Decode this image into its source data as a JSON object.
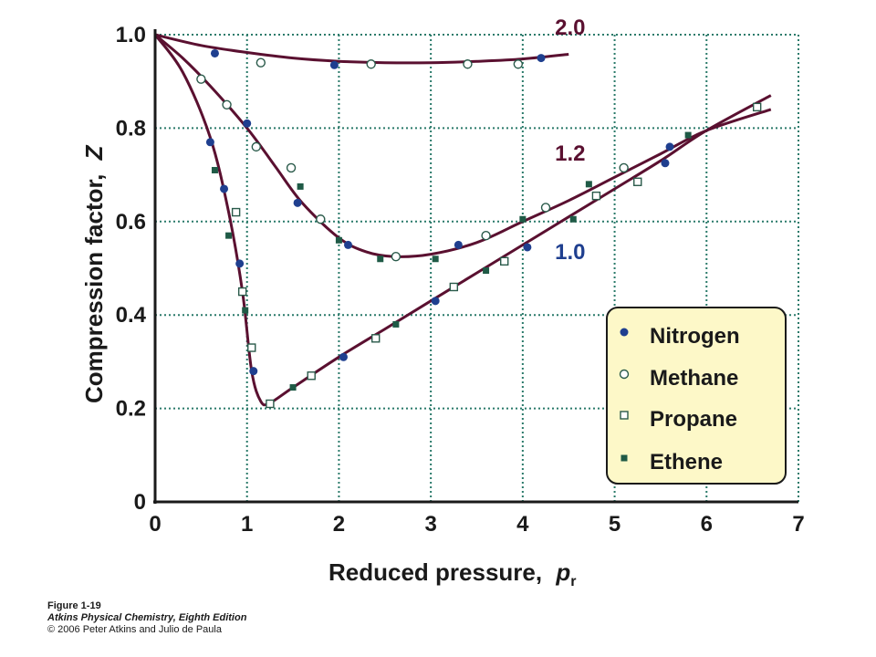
{
  "chart_data": {
    "type": "scatter",
    "xlabel": "Reduced pressure,",
    "xlabel_symbol": "p",
    "xlabel_subscript": "r",
    "ylabel": "Compression factor,",
    "ylabel_symbol": "Z",
    "xlim": [
      0,
      7
    ],
    "ylim": [
      0,
      1.0
    ],
    "x_ticks": [
      "0",
      "1",
      "2",
      "3",
      "4",
      "5",
      "6",
      "7"
    ],
    "y_ticks": [
      "0",
      "0.2",
      "0.4",
      "0.6",
      "0.8",
      "1.0"
    ],
    "grid": true,
    "legend_position": "bottom-right",
    "colors": {
      "curve": "#5a1030",
      "nitrogen": "#1f3f8f",
      "methane": "#2a5a4a",
      "propane": "#2a5a4a",
      "ethene": "#1f5a46",
      "grid": "#2a7a6a",
      "legend_bg": "#fdf8c8",
      "label_blue": "#1f3f8f"
    },
    "curves": [
      {
        "label": "2.0",
        "label_color": "#5a1030",
        "points": [
          [
            0,
            1.0
          ],
          [
            0.5,
            0.977
          ],
          [
            1,
            0.962
          ],
          [
            1.5,
            0.95
          ],
          [
            2,
            0.943
          ],
          [
            2.5,
            0.94
          ],
          [
            3,
            0.94
          ],
          [
            3.5,
            0.943
          ],
          [
            4,
            0.948
          ],
          [
            4.5,
            0.958
          ]
        ]
      },
      {
        "label": "1.2",
        "label_color": "#5a1030",
        "points": [
          [
            0,
            1.0
          ],
          [
            0.3,
            0.95
          ],
          [
            0.6,
            0.89
          ],
          [
            1,
            0.8
          ],
          [
            1.3,
            0.72
          ],
          [
            1.6,
            0.64
          ],
          [
            2,
            0.565
          ],
          [
            2.3,
            0.535
          ],
          [
            2.6,
            0.525
          ],
          [
            3,
            0.53
          ],
          [
            3.5,
            0.555
          ],
          [
            4,
            0.6
          ],
          [
            4.5,
            0.645
          ],
          [
            5,
            0.695
          ],
          [
            5.5,
            0.745
          ],
          [
            6,
            0.795
          ],
          [
            6.7,
            0.84
          ]
        ]
      },
      {
        "label": "1.0",
        "label_color": "#1f3f8f",
        "points": [
          [
            0,
            1.0
          ],
          [
            0.3,
            0.92
          ],
          [
            0.6,
            0.78
          ],
          [
            0.8,
            0.62
          ],
          [
            0.95,
            0.45
          ],
          [
            1.05,
            0.28
          ],
          [
            1.15,
            0.215
          ],
          [
            1.25,
            0.212
          ],
          [
            1.5,
            0.245
          ],
          [
            2,
            0.31
          ],
          [
            2.5,
            0.37
          ],
          [
            3,
            0.43
          ],
          [
            3.5,
            0.49
          ],
          [
            4,
            0.55
          ],
          [
            4.5,
            0.61
          ],
          [
            5,
            0.67
          ],
          [
            5.5,
            0.73
          ],
          [
            6,
            0.795
          ],
          [
            6.7,
            0.87
          ]
        ]
      }
    ],
    "series": [
      {
        "name": "Nitrogen",
        "marker": "filled-circle",
        "points": [
          [
            0.65,
            0.96
          ],
          [
            1.95,
            0.935
          ],
          [
            4.2,
            0.95
          ],
          [
            0.6,
            0.77
          ],
          [
            0.75,
            0.67
          ],
          [
            0.92,
            0.51
          ],
          [
            1.0,
            0.81
          ],
          [
            1.55,
            0.64
          ],
          [
            2.1,
            0.55
          ],
          [
            3.3,
            0.55
          ],
          [
            4.05,
            0.545
          ],
          [
            1.07,
            0.28
          ],
          [
            2.05,
            0.31
          ],
          [
            3.05,
            0.43
          ],
          [
            5.55,
            0.725
          ],
          [
            5.6,
            0.76
          ]
        ]
      },
      {
        "name": "Methane",
        "marker": "open-circle",
        "points": [
          [
            1.15,
            0.94
          ],
          [
            2.35,
            0.937
          ],
          [
            3.4,
            0.937
          ],
          [
            3.95,
            0.937
          ],
          [
            0.5,
            0.905
          ],
          [
            0.78,
            0.85
          ],
          [
            1.1,
            0.76
          ],
          [
            1.48,
            0.715
          ],
          [
            1.8,
            0.605
          ],
          [
            2.62,
            0.525
          ],
          [
            3.6,
            0.57
          ],
          [
            4.25,
            0.63
          ],
          [
            5.1,
            0.715
          ]
        ]
      },
      {
        "name": "Propane",
        "marker": "open-square",
        "points": [
          [
            0.88,
            0.62
          ],
          [
            0.95,
            0.45
          ],
          [
            1.05,
            0.33
          ],
          [
            1.25,
            0.21
          ],
          [
            1.7,
            0.27
          ],
          [
            2.4,
            0.35
          ],
          [
            3.25,
            0.46
          ],
          [
            3.8,
            0.515
          ],
          [
            4.8,
            0.655
          ],
          [
            5.25,
            0.685
          ],
          [
            6.55,
            0.845
          ]
        ]
      },
      {
        "name": "Ethene",
        "marker": "filled-square",
        "points": [
          [
            0.65,
            0.71
          ],
          [
            0.8,
            0.57
          ],
          [
            0.98,
            0.41
          ],
          [
            1.5,
            0.245
          ],
          [
            1.58,
            0.675
          ],
          [
            2,
            0.56
          ],
          [
            2.45,
            0.52
          ],
          [
            2.62,
            0.38
          ],
          [
            3.05,
            0.52
          ],
          [
            3.6,
            0.495
          ],
          [
            4.0,
            0.605
          ],
          [
            4.55,
            0.605
          ],
          [
            4.72,
            0.68
          ],
          [
            5.8,
            0.785
          ]
        ]
      }
    ]
  },
  "caption": {
    "figure": "Figure 1-19",
    "book": "Atkins Physical Chemistry, Eighth Edition",
    "copyright": "© 2006 Peter Atkins and Julio de Paula"
  }
}
